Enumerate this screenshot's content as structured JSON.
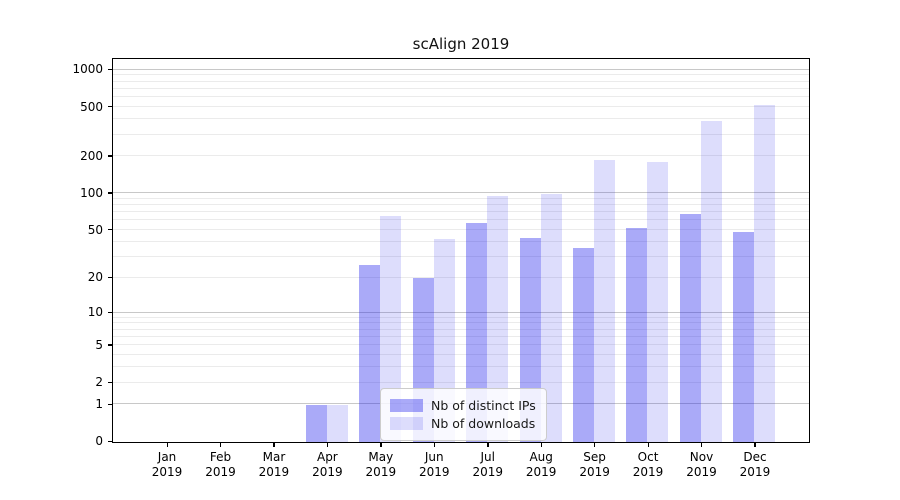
{
  "title": "scAlign 2019",
  "colors": {
    "bar_distinct_ips": "rgba(20,20,235,0.36)",
    "bar_downloads": "rgba(20,20,235,0.145)",
    "grid_major": "#c8c8c8",
    "grid_minor": "#ebebeb",
    "axis_frame": "#000000",
    "legend_border": "#cccccc"
  },
  "y_axis": {
    "tick_values": [
      0,
      1,
      2,
      5,
      10,
      20,
      50,
      100,
      200,
      500,
      1000
    ],
    "tick_labels": [
      "0",
      "1",
      "2",
      "5",
      "10",
      "20",
      "50",
      "100",
      "200",
      "500",
      "1000"
    ],
    "scale": "log1p",
    "top_value": 1200,
    "major_gridlines": [
      1,
      10,
      100,
      1000
    ],
    "minor_gridlines": [
      2,
      3,
      4,
      5,
      6,
      7,
      8,
      9,
      20,
      30,
      40,
      50,
      60,
      70,
      80,
      90,
      200,
      300,
      400,
      500,
      600,
      700,
      800,
      900
    ]
  },
  "x_axis": {
    "months": [
      "Jan",
      "Feb",
      "Mar",
      "Apr",
      "May",
      "Jun",
      "Jul",
      "Aug",
      "Sep",
      "Oct",
      "Nov",
      "Dec"
    ],
    "year": "2019"
  },
  "legend": {
    "items": [
      "Nb of distinct IPs",
      "Nb of downloads"
    ]
  },
  "chart_data": {
    "type": "bar",
    "title": "scAlign 2019",
    "categories": [
      "Jan 2019",
      "Feb 2019",
      "Mar 2019",
      "Apr 2019",
      "May 2019",
      "Jun 2019",
      "Jul 2019",
      "Aug 2019",
      "Sep 2019",
      "Oct 2019",
      "Nov 2019",
      "Dec 2019"
    ],
    "series": [
      {
        "name": "Nb of distinct IPs",
        "color": "rgba(20,20,235,0.36)",
        "values": [
          0,
          0,
          0,
          1,
          26,
          20,
          57,
          43,
          36,
          52,
          68,
          48
        ]
      },
      {
        "name": "Nb of downloads",
        "color": "rgba(20,20,235,0.145)",
        "values": [
          0,
          0,
          0,
          1,
          66,
          42,
          95,
          100,
          187,
          179,
          390,
          520
        ]
      }
    ],
    "xlabel": "",
    "ylabel": "",
    "yscale": "symlog (log(1+x))",
    "ylim": [
      0,
      1200
    ],
    "y_ticks": [
      0,
      1,
      2,
      5,
      10,
      20,
      50,
      100,
      200,
      500,
      1000
    ],
    "grid": "horizontal major+minor",
    "legend_position": "inside lower-center-right"
  }
}
